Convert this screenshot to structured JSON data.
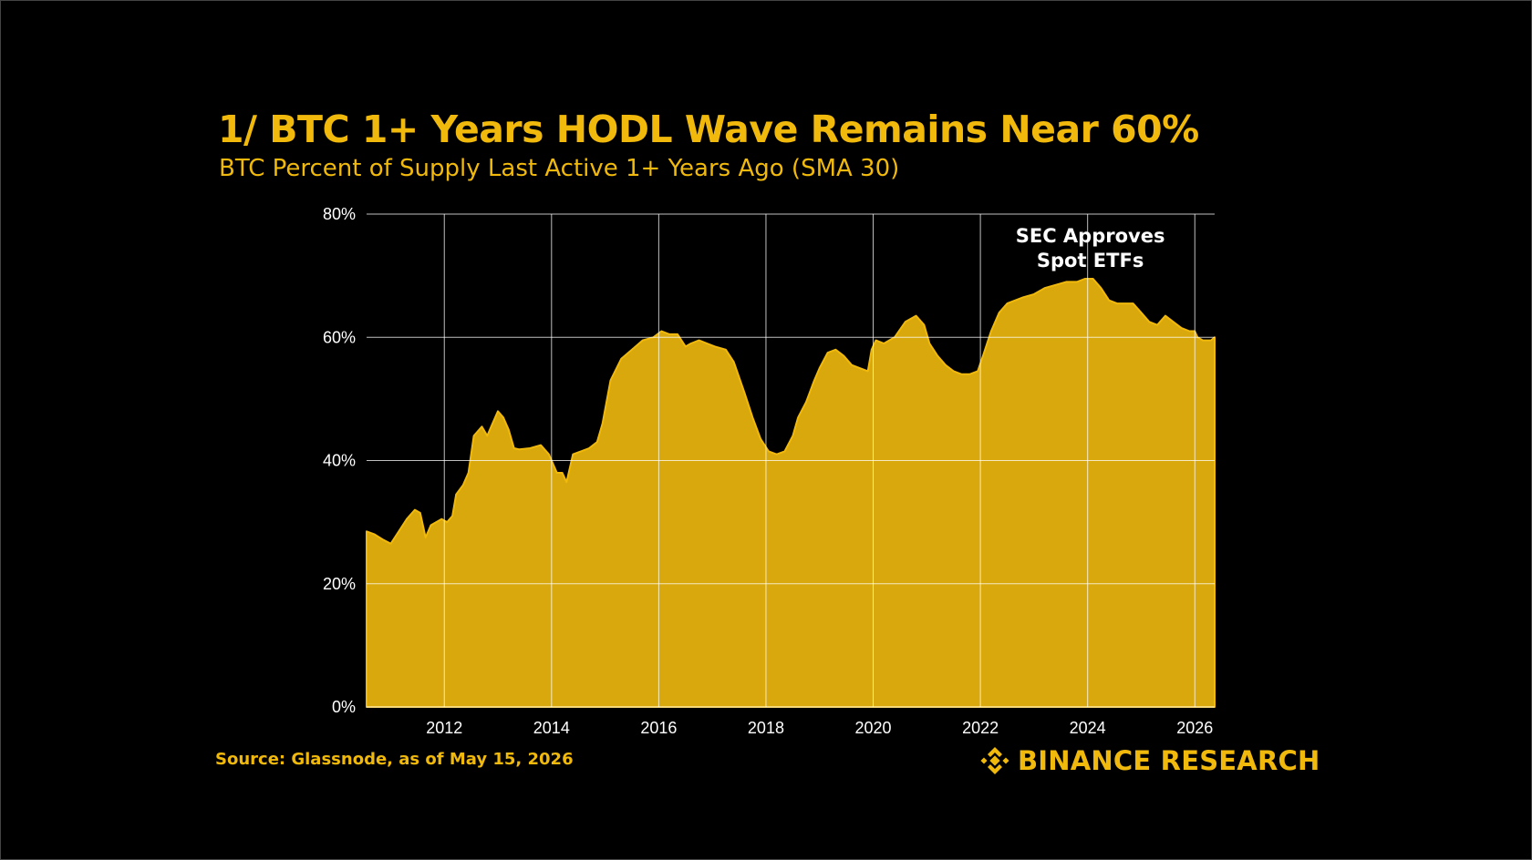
{
  "header": {
    "title": "1/ BTC 1+ Years HODL Wave Remains Near 60%",
    "subtitle": "BTC Percent of Supply Last Active 1+ Years Ago (SMA 30)"
  },
  "footer": {
    "source": "Source: Glassnode, as of May 15, 2026",
    "brand": "BINANCE RESEARCH"
  },
  "colors": {
    "accent": "#F0B90B",
    "area_fill": "#D9A80C",
    "background": "#000000",
    "grid": "#FFFFFF"
  },
  "chart_data": {
    "type": "area",
    "title": "1/ BTC 1+ Years HODL Wave Remains Near 60%",
    "subtitle": "BTC Percent of Supply Last Active 1+ Years Ago (SMA 30)",
    "xlabel": "",
    "ylabel": "",
    "xlim": [
      2010.55,
      2026.37
    ],
    "ylim": [
      0,
      80
    ],
    "x_ticks": [
      2012,
      2014,
      2016,
      2018,
      2020,
      2022,
      2024,
      2026
    ],
    "x_tick_labels": [
      "2012",
      "2014",
      "2016",
      "2018",
      "2020",
      "2022",
      "2024",
      "2026"
    ],
    "y_ticks": [
      0,
      20,
      40,
      60,
      80
    ],
    "y_tick_labels": [
      "0%",
      "20%",
      "40%",
      "60%",
      "80%"
    ],
    "grid": true,
    "legend": "none",
    "annotations": [
      {
        "text": [
          "SEC Approves",
          "Spot ETFs"
        ],
        "x": 2024.05
      }
    ],
    "series": [
      {
        "x": [
          2010.55,
          2010.7,
          2010.85,
          2011.0,
          2011.15,
          2011.3,
          2011.45,
          2011.55,
          2011.65,
          2011.75,
          2011.85,
          2011.95,
          2012.05,
          2012.15,
          2012.22,
          2012.35,
          2012.45,
          2012.55,
          2012.7,
          2012.8,
          2012.9,
          2013.0,
          2013.1,
          2013.2,
          2013.3,
          2013.4,
          2013.6,
          2013.8,
          2013.95,
          2014.1,
          2014.2,
          2014.28,
          2014.4,
          2014.55,
          2014.7,
          2014.85,
          2014.95,
          2015.1,
          2015.3,
          2015.5,
          2015.7,
          2015.9,
          2016.05,
          2016.2,
          2016.35,
          2016.5,
          2016.6,
          2016.75,
          2016.9,
          2017.05,
          2017.25,
          2017.4,
          2017.6,
          2017.75,
          2017.9,
          2018.05,
          2018.2,
          2018.35,
          2018.5,
          2018.6,
          2018.75,
          2018.9,
          2019.0,
          2019.15,
          2019.3,
          2019.45,
          2019.6,
          2019.75,
          2019.9,
          2019.97,
          2020.05,
          2020.2,
          2020.4,
          2020.6,
          2020.8,
          2020.95,
          2021.05,
          2021.2,
          2021.35,
          2021.5,
          2021.65,
          2021.8,
          2021.95,
          2022.05,
          2022.2,
          2022.35,
          2022.5,
          2022.65,
          2022.8,
          2023.0,
          2023.2,
          2023.4,
          2023.6,
          2023.8,
          2023.95,
          2024.1,
          2024.25,
          2024.4,
          2024.55,
          2024.7,
          2024.85,
          2025.0,
          2025.15,
          2025.3,
          2025.45,
          2025.6,
          2025.75,
          2025.9,
          2026.0,
          2026.05,
          2026.15,
          2026.3,
          2026.37
        ],
        "y": [
          28.5,
          28.0,
          27.2,
          26.5,
          28.5,
          30.5,
          32.0,
          31.5,
          27.5,
          29.5,
          30.0,
          30.5,
          30.0,
          31.0,
          34.5,
          36.0,
          38.0,
          44.0,
          45.5,
          44.0,
          46.0,
          48.0,
          47.0,
          45.0,
          42.0,
          41.8,
          42.0,
          42.5,
          41.0,
          38.0,
          38.0,
          36.5,
          41.0,
          41.5,
          42.0,
          43.0,
          46.0,
          53.0,
          56.5,
          58.0,
          59.5,
          60.0,
          61.0,
          60.5,
          60.5,
          58.5,
          59.0,
          59.5,
          59.0,
          58.5,
          58.0,
          56.0,
          51.0,
          47.0,
          43.5,
          41.5,
          41.0,
          41.5,
          44.0,
          47.0,
          49.5,
          53.0,
          55.0,
          57.5,
          58.0,
          57.0,
          55.5,
          55.0,
          54.5,
          58.0,
          59.5,
          59.0,
          60.0,
          62.5,
          63.5,
          62.0,
          59.0,
          57.0,
          55.5,
          54.5,
          54.0,
          54.0,
          54.5,
          57.0,
          61.0,
          64.0,
          65.5,
          66.0,
          66.5,
          67.0,
          68.0,
          68.5,
          69.0,
          69.0,
          69.5,
          69.5,
          68.0,
          66.0,
          65.5,
          65.5,
          65.5,
          64.0,
          62.5,
          62.0,
          63.5,
          62.5,
          61.5,
          61.0,
          61.0,
          60.0,
          59.5,
          59.5,
          60.0
        ]
      }
    ]
  }
}
